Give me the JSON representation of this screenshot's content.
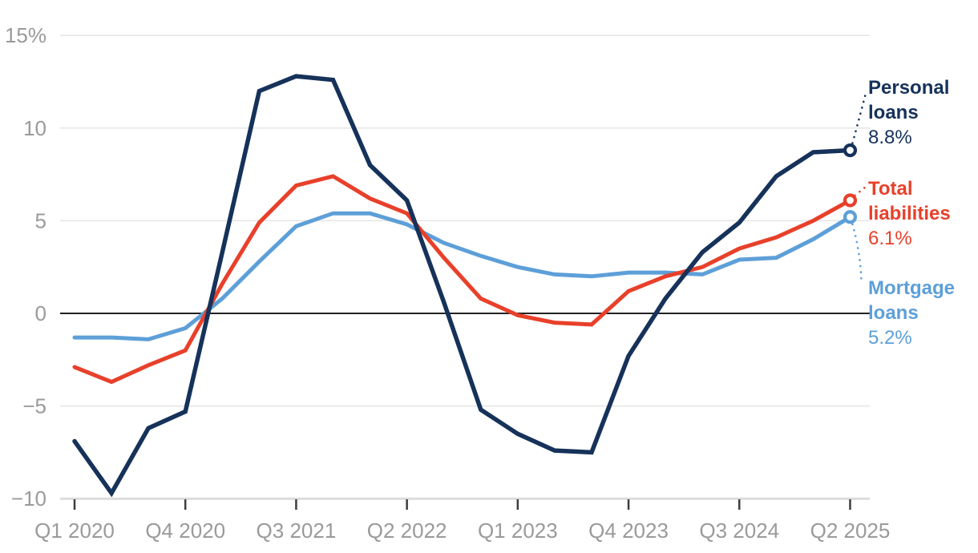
{
  "chart_data": {
    "type": "line",
    "unit": "%",
    "grid": "horizontal",
    "legend_position": "right-end-annotations",
    "x": [
      "Q1 2020",
      "Q2 2020",
      "Q3 2020",
      "Q4 2020",
      "Q1 2021",
      "Q2 2021",
      "Q3 2021",
      "Q4 2021",
      "Q1 2022",
      "Q2 2022",
      "Q3 2022",
      "Q4 2022",
      "Q1 2023",
      "Q2 2023",
      "Q3 2023",
      "Q4 2023",
      "Q1 2024",
      "Q2 2024",
      "Q3 2024",
      "Q4 2024",
      "Q1 2025",
      "Q2 2025"
    ],
    "x_tick_indices": [
      0,
      3,
      6,
      9,
      12,
      15,
      18,
      21
    ],
    "x_tick_labels": [
      "Q1 2020",
      "Q4 2020",
      "Q3 2021",
      "Q2 2022",
      "Q1 2023",
      "Q4 2023",
      "Q3 2024",
      "Q2 2025"
    ],
    "y_ticks": [
      {
        "value": 15,
        "label": "15%"
      },
      {
        "value": 10,
        "label": "10"
      },
      {
        "value": 5,
        "label": "5"
      },
      {
        "value": 0,
        "label": "0"
      },
      {
        "value": -5,
        "label": "−5"
      },
      {
        "value": -10,
        "label": "−10"
      }
    ],
    "ylim": [
      -10,
      15
    ],
    "series": [
      {
        "name": "Personal loans",
        "end_value": "8.8%",
        "color": "#16325a",
        "values": [
          -6.9,
          -9.7,
          -6.2,
          -5.3,
          3.3,
          12.0,
          12.8,
          12.6,
          8.0,
          6.1,
          0.6,
          -5.2,
          -6.5,
          -7.4,
          -7.5,
          -2.3,
          0.8,
          3.3,
          4.9,
          7.4,
          8.7,
          8.8
        ]
      },
      {
        "name": "Total liabilities",
        "end_value": "6.1%",
        "color": "#e8402a",
        "values": [
          -2.9,
          -3.7,
          -2.8,
          -2.0,
          1.6,
          4.9,
          6.9,
          7.4,
          6.2,
          5.4,
          3.0,
          0.8,
          -0.1,
          -0.5,
          -0.6,
          1.2,
          2.0,
          2.5,
          3.5,
          4.1,
          5.0,
          6.1
        ]
      },
      {
        "name": "Mortgage loans",
        "end_value": "5.2%",
        "color": "#5d9fd8",
        "values": [
          -1.3,
          -1.3,
          -1.4,
          -0.8,
          0.8,
          2.8,
          4.7,
          5.4,
          5.4,
          4.8,
          3.8,
          3.1,
          2.5,
          2.1,
          2.0,
          2.2,
          2.2,
          2.1,
          2.9,
          3.0,
          4.0,
          5.2
        ]
      }
    ],
    "axis_colors": {
      "tick_label": "#9a9a9a",
      "gridline": "#e5e5e5",
      "zero_line": "#222222",
      "baseline": "#dcdcdc",
      "tick_mark": "#3d3d3d"
    }
  }
}
